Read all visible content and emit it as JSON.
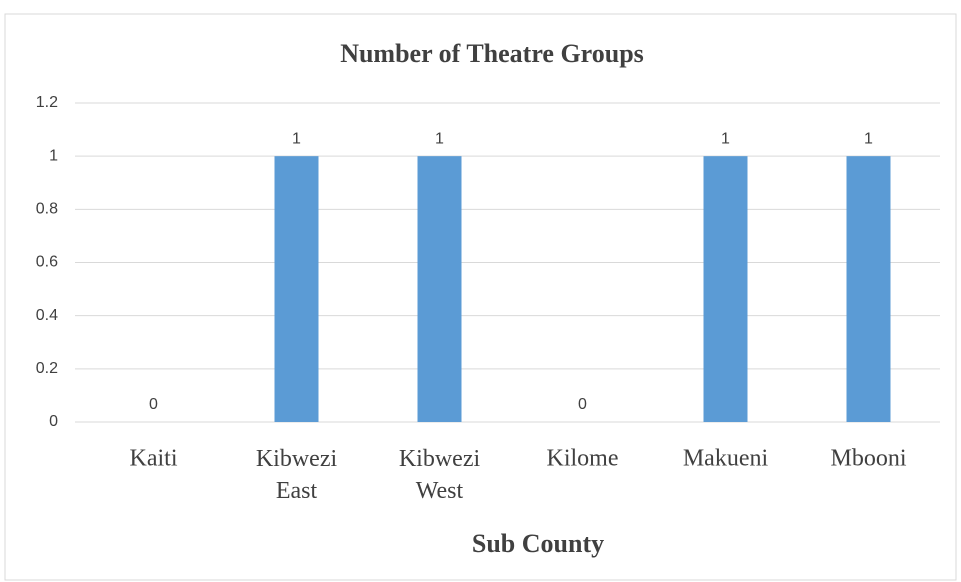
{
  "chart_data": {
    "type": "bar",
    "title": "Number of Theatre Groups",
    "x_label": "Sub County",
    "categories": [
      "Kaiti",
      "Kibwezi East",
      "Kibwezi West",
      "Kilome",
      "Makueni",
      "Mbooni"
    ],
    "values": [
      0,
      1,
      1,
      0,
      1,
      1
    ],
    "color": "#5b9bd5",
    "ylim": [
      0,
      1.2
    ],
    "yticks": [
      0,
      0.2,
      0.4,
      0.6,
      0.8,
      1,
      1.2
    ],
    "grid": true
  }
}
